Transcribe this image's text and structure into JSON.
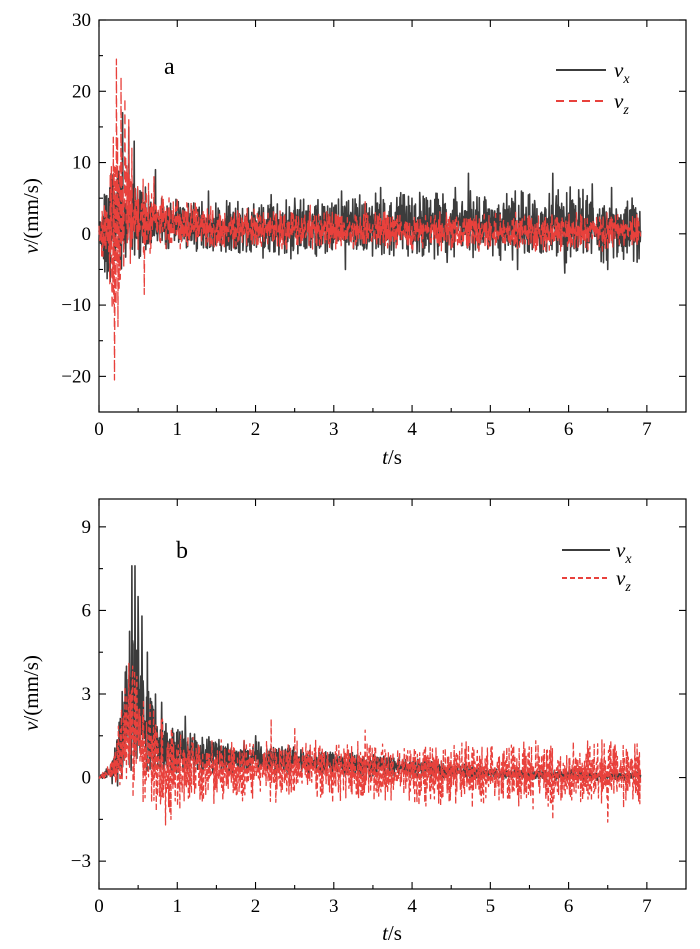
{
  "figure": "two stacked time-series panels of velocity components",
  "chart_data": [
    {
      "type": "line",
      "panel_label": "a",
      "xlabel": {
        "var": "t",
        "unit": "/s"
      },
      "ylabel": {
        "var": "v",
        "unit": "/(mm/s)"
      },
      "xlim": [
        0,
        7.5
      ],
      "ylim": [
        -25,
        30
      ],
      "xticks": [
        0,
        1,
        2,
        3,
        4,
        5,
        6,
        7
      ],
      "yticks": [
        -20,
        -10,
        0,
        10,
        20,
        30
      ],
      "ytick_labels": [
        "−20",
        "−10",
        "0",
        "10",
        "20",
        "30"
      ],
      "legend_position": "top-right",
      "series": [
        {
          "name": "v_x",
          "label_main": "v",
          "label_sub": "x",
          "color": "#3c3c3c",
          "dash": "solid",
          "t_end": 6.92,
          "amplitude_profile": [
            [
              0,
              0.5
            ],
            [
              0.1,
              7
            ],
            [
              0.35,
              5
            ],
            [
              0.7,
              3
            ],
            [
              1.5,
              2.8
            ],
            [
              2.5,
              3.2
            ],
            [
              4,
              3.6
            ],
            [
              5,
              3.8
            ],
            [
              6,
              4
            ],
            [
              6.92,
              3.6
            ]
          ],
          "baseline_profile": [
            [
              0,
              0
            ],
            [
              0.3,
              2
            ],
            [
              0.8,
              1.5
            ],
            [
              2,
              0.6
            ],
            [
              3,
              1.2
            ],
            [
              4,
              1
            ],
            [
              5,
              1.2
            ],
            [
              6,
              1.3
            ],
            [
              6.92,
              0.5
            ]
          ],
          "peaks": [
            [
              0.3,
              17
            ],
            [
              0.38,
              15
            ],
            [
              0.45,
              13
            ],
            [
              0.72,
              9
            ],
            [
              1.4,
              6
            ],
            [
              2.2,
              5.5
            ],
            [
              2.5,
              5
            ],
            [
              3.1,
              6
            ],
            [
              3.6,
              6.5
            ],
            [
              3.9,
              5.5
            ],
            [
              4.1,
              5.8
            ],
            [
              4.55,
              6.5
            ],
            [
              4.72,
              8.5
            ],
            [
              5.4,
              6
            ],
            [
              5.8,
              8.5
            ],
            [
              6.3,
              7
            ],
            [
              6.55,
              6.5
            ],
            [
              2.45,
              -3.5
            ],
            [
              3.15,
              -5
            ],
            [
              4.45,
              -4
            ],
            [
              5.35,
              -5
            ],
            [
              5.95,
              -5.5
            ],
            [
              6.5,
              -5
            ],
            [
              6.9,
              -3.5
            ]
          ]
        },
        {
          "name": "v_z",
          "label_main": "v",
          "label_sub": "z",
          "color": "#e8413c",
          "dash": "dash",
          "t_end": 6.92,
          "amplitude_profile": [
            [
              0,
              1
            ],
            [
              0.12,
              7
            ],
            [
              0.2,
              10
            ],
            [
              0.3,
              8
            ],
            [
              0.5,
              5
            ],
            [
              0.8,
              3
            ],
            [
              1.5,
              2.2
            ],
            [
              3,
              2.1
            ],
            [
              5,
              2.1
            ],
            [
              6.92,
              2.1
            ]
          ],
          "baseline_profile": [
            [
              0,
              0
            ],
            [
              0.2,
              1.5
            ],
            [
              0.45,
              2.5
            ],
            [
              0.8,
              1.8
            ],
            [
              1.5,
              0.8
            ],
            [
              3,
              0.5
            ],
            [
              5,
              0.2
            ],
            [
              6.92,
              0.3
            ]
          ],
          "peaks": [
            [
              0.22,
              24.5
            ],
            [
              0.28,
              22
            ],
            [
              0.33,
              19
            ],
            [
              0.38,
              16
            ],
            [
              0.42,
              12
            ],
            [
              0.7,
              8
            ],
            [
              0.2,
              -20.5
            ],
            [
              0.24,
              -13
            ],
            [
              0.17,
              -10.5
            ],
            [
              0.58,
              -8.5
            ],
            [
              0.14,
              -7
            ],
            [
              1.0,
              5
            ],
            [
              2.7,
              4
            ],
            [
              3.4,
              4.5
            ]
          ]
        }
      ]
    },
    {
      "type": "line",
      "panel_label": "b",
      "xlabel": {
        "var": "t",
        "unit": "/s"
      },
      "ylabel": {
        "var": "v",
        "unit": "/(mm/s)"
      },
      "xlim": [
        0,
        7.5
      ],
      "ylim": [
        -4,
        10
      ],
      "xticks": [
        0,
        1,
        2,
        3,
        4,
        5,
        6,
        7
      ],
      "yticks": [
        -3,
        0,
        3,
        6,
        9
      ],
      "ytick_labels": [
        "−3",
        "0",
        "3",
        "6",
        "9"
      ],
      "legend_position": "top-right",
      "series": [
        {
          "name": "v_x",
          "label_main": "v",
          "label_sub": "x",
          "color": "#3c3c3c",
          "dash": "solid",
          "t_end": 6.92,
          "amplitude_profile": [
            [
              0,
              0.02
            ],
            [
              0.15,
              0.2
            ],
            [
              0.3,
              1.5
            ],
            [
              0.45,
              2.5
            ],
            [
              0.6,
              1.4
            ],
            [
              0.9,
              0.7
            ],
            [
              1.5,
              0.5
            ],
            [
              3,
              0.35
            ],
            [
              5,
              0.18
            ],
            [
              6.92,
              0.12
            ]
          ],
          "baseline_profile": [
            [
              0,
              0
            ],
            [
              0.2,
              0.3
            ],
            [
              0.35,
              2.2
            ],
            [
              0.45,
              3.2
            ],
            [
              0.6,
              1.8
            ],
            [
              0.8,
              1.1
            ],
            [
              1.2,
              0.8
            ],
            [
              2,
              0.7
            ],
            [
              3,
              0.5
            ],
            [
              4,
              0.35
            ],
            [
              5,
              0.15
            ],
            [
              6,
              0.08
            ],
            [
              6.92,
              0.05
            ]
          ],
          "peaks": [
            [
              0.42,
              7.6
            ],
            [
              0.46,
              7.6
            ],
            [
              0.5,
              6.5
            ],
            [
              0.55,
              5.8
            ],
            [
              0.62,
              4.5
            ],
            [
              0.72,
              3
            ],
            [
              0.8,
              2.7
            ],
            [
              1.1,
              2.2
            ],
            [
              2.0,
              1.5
            ]
          ]
        },
        {
          "name": "v_z",
          "label_main": "v",
          "label_sub": "z",
          "color": "#e8413c",
          "dash": "dash",
          "t_end": 6.92,
          "amplitude_profile": [
            [
              0,
              0.02
            ],
            [
              0.15,
              0.25
            ],
            [
              0.3,
              1.4
            ],
            [
              0.42,
              2
            ],
            [
              0.6,
              1.5
            ],
            [
              0.9,
              1.2
            ],
            [
              1.5,
              0.9
            ],
            [
              3,
              0.85
            ],
            [
              5,
              0.9
            ],
            [
              6.92,
              0.95
            ]
          ],
          "baseline_profile": [
            [
              0,
              0
            ],
            [
              0.2,
              0.3
            ],
            [
              0.35,
              1.5
            ],
            [
              0.45,
              2
            ],
            [
              0.6,
              0.9
            ],
            [
              0.9,
              0.3
            ],
            [
              1.5,
              0.3
            ],
            [
              3,
              0.2
            ],
            [
              5,
              0.1
            ],
            [
              6.92,
              0.1
            ]
          ],
          "peaks": [
            [
              0.38,
              4.1
            ],
            [
              0.43,
              4
            ],
            [
              0.48,
              3.5
            ],
            [
              0.85,
              -1.7
            ],
            [
              0.92,
              -1.5
            ],
            [
              2.2,
              2.1
            ],
            [
              2.5,
              1.8
            ],
            [
              3.4,
              1.7
            ],
            [
              6.5,
              -1.6
            ],
            [
              5.8,
              -1.5
            ]
          ]
        }
      ]
    }
  ]
}
